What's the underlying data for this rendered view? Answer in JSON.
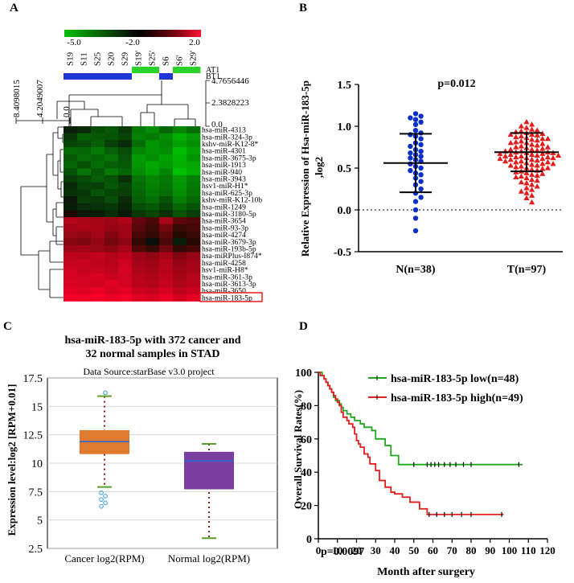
{
  "panels": {
    "A": {
      "letter": "A"
    },
    "B": {
      "letter": "B"
    },
    "C": {
      "letter": "C"
    },
    "D": {
      "letter": "D"
    }
  },
  "chart_data": [
    {
      "panel": "A",
      "type": "heatmap",
      "color_scale": {
        "ticks": [
          "-5.0",
          "-2.0",
          "2.0"
        ],
        "low_color": "#00c000",
        "mid_color": "#000000",
        "high_color": "#e8002a"
      },
      "samples": [
        "S19",
        "S11",
        "S25",
        "S20",
        "S29",
        "S19'",
        "S25'",
        "S6",
        "S6'",
        "S29'"
      ],
      "tracks": [
        {
          "name": "AT1",
          "values": [
            0,
            0,
            0,
            0,
            0,
            1,
            1,
            0,
            1,
            1
          ],
          "color": "#2ad22a"
        },
        {
          "name": "BT1",
          "values": [
            1,
            1,
            1,
            1,
            1,
            0,
            0,
            1,
            0,
            0
          ],
          "color": "#1f35d6"
        }
      ],
      "col_dendrogram_ticks": [
        "4.7656446",
        "2.3828223",
        "0.0"
      ],
      "row_dendrogram_ticks": [
        "8.4098015",
        "4.2049007",
        "0.0"
      ],
      "genes": [
        "hsa-miR-4313",
        "hsa-miR-324-3p",
        "kshv-miR-K12-8*",
        "hsa-miR-4301",
        "hsa-miR-3675-3p",
        "hsa-miR-1913",
        "hsa-miR-940",
        "hsa-miR-3943",
        "hsv1-miR-H1*",
        "hsa-miR-625-3p",
        "kshv-miR-K12-10b",
        "hsa-miR-1249",
        "hsa-miR-3180-5p",
        "hsa-miR-3654",
        "hsa-miR-93-3p",
        "hsa-miR-4274",
        "hsa-miR-3679-3p",
        "hsa-miR-193b-5p",
        "hsa-miRPlus-I874*",
        "hsa-miR-4258",
        "hsv1-miR-H8*",
        "hsa-miR-361-3p",
        "hsa-miR-3613-3p",
        "hsa-miR-3650",
        "hsa-miR-183-5p"
      ],
      "highlighted_gene": "hsa-miR-183-5p",
      "values": [
        [
          -2.2,
          -2.4,
          -2.9,
          -3.1,
          -2.6,
          -3.6,
          -3.9,
          -3.3,
          -3.8,
          -3.4
        ],
        [
          -2.6,
          -3.2,
          -3.1,
          -3.0,
          -2.8,
          -3.7,
          -3.6,
          -3.9,
          -4.4,
          -4.1
        ],
        [
          -2.8,
          -2.9,
          -3.2,
          -2.7,
          -2.4,
          -3.4,
          -4.0,
          -3.8,
          -4.2,
          -3.9
        ],
        [
          -3.4,
          -3.3,
          -3.6,
          -3.2,
          -2.9,
          -3.8,
          -4.0,
          -3.9,
          -4.6,
          -4.2
        ],
        [
          -3.1,
          -3.4,
          -3.3,
          -3.5,
          -3.0,
          -4.1,
          -3.9,
          -4.2,
          -4.5,
          -4.0
        ],
        [
          -3.3,
          -3.0,
          -3.4,
          -3.2,
          -3.1,
          -4.0,
          -4.3,
          -4.1,
          -4.4,
          -4.3
        ],
        [
          -3.0,
          -3.5,
          -3.1,
          -3.6,
          -3.3,
          -3.9,
          -4.2,
          -3.8,
          -4.7,
          -4.4
        ],
        [
          -2.7,
          -2.9,
          -3.2,
          -3.0,
          -2.5,
          -3.5,
          -3.8,
          -3.6,
          -4.1,
          -3.7
        ],
        [
          -2.4,
          -2.8,
          -2.7,
          -3.1,
          -2.8,
          -3.4,
          -3.7,
          -3.5,
          -4.0,
          -3.6
        ],
        [
          -2.5,
          -2.6,
          -3.0,
          -2.8,
          -2.7,
          -3.3,
          -3.6,
          -3.4,
          -3.9,
          -3.5
        ],
        [
          -2.1,
          -2.7,
          -2.6,
          -2.9,
          -2.4,
          -3.2,
          -3.4,
          -3.0,
          -3.7,
          -3.3
        ],
        [
          -2.2,
          -2.4,
          -2.5,
          -2.6,
          -2.3,
          -2.9,
          -3.1,
          -2.8,
          -3.3,
          -3.0
        ],
        [
          -1.9,
          -2.1,
          -2.2,
          -2.4,
          -2.1,
          -2.6,
          -2.8,
          -2.5,
          -3.0,
          -2.7
        ],
        [
          0.6,
          0.4,
          0.3,
          0.2,
          0.5,
          -0.8,
          -1.2,
          0.4,
          -0.9,
          -1.1
        ],
        [
          0.3,
          0.5,
          0.4,
          0.1,
          0.2,
          -1.0,
          -1.4,
          -0.5,
          -1.5,
          -1.3
        ],
        [
          0.1,
          0.0,
          0.3,
          -0.3,
          0.2,
          -1.3,
          -1.6,
          -0.9,
          -1.8,
          -1.5
        ],
        [
          -0.2,
          -0.4,
          0.0,
          -0.5,
          -0.1,
          -1.6,
          -2.0,
          -1.2,
          -2.2,
          -1.8
        ],
        [
          0.2,
          0.3,
          0.1,
          -0.1,
          0.4,
          -1.1,
          -1.5,
          -0.6,
          -1.6,
          -1.3
        ],
        [
          0.8,
          0.7,
          0.9,
          0.6,
          0.8,
          0.2,
          0.0,
          0.4,
          -0.3,
          0.1
        ],
        [
          0.9,
          1.0,
          0.8,
          0.7,
          1.1,
          0.3,
          0.2,
          0.6,
          0.0,
          0.3
        ],
        [
          1.1,
          0.9,
          1.0,
          0.8,
          1.2,
          0.5,
          0.3,
          0.7,
          0.2,
          0.4
        ],
        [
          1.2,
          1.1,
          1.3,
          1.0,
          1.1,
          0.6,
          0.5,
          0.8,
          0.4,
          0.6
        ],
        [
          1.3,
          1.2,
          1.1,
          1.4,
          1.2,
          0.7,
          0.6,
          0.9,
          0.5,
          0.7
        ],
        [
          1.5,
          1.4,
          1.6,
          1.3,
          1.5,
          1.0,
          0.9,
          1.2,
          0.8,
          1.0
        ],
        [
          1.8,
          1.7,
          1.9,
          1.6,
          1.8,
          1.4,
          1.3,
          1.6,
          1.2,
          1.5
        ]
      ]
    },
    {
      "panel": "B",
      "type": "scatter",
      "ylabel": "Relative Expression of Hsa-miR-183-5p ,log2",
      "ylim": [
        -0.5,
        1.5
      ],
      "yticks": [
        "-0.5",
        "0.0",
        "0.5",
        "1.0",
        "1.5"
      ],
      "annotation": "p=0.012",
      "groups": [
        {
          "label": "N(n=38)",
          "color": "#0b2fc8",
          "marker": "circle",
          "mean": 0.56,
          "sd_upper": 0.91,
          "sd_lower": 0.21,
          "values": [
            1.15,
            1.12,
            1.1,
            1.08,
            1.05,
            1.02,
            0.95,
            0.92,
            0.9,
            0.88,
            0.85,
            0.8,
            0.78,
            0.76,
            0.72,
            0.7,
            0.68,
            0.66,
            0.64,
            0.62,
            0.6,
            0.58,
            0.55,
            0.52,
            0.5,
            0.47,
            0.44,
            0.42,
            0.38,
            0.34,
            0.3,
            0.25,
            0.2,
            0.15,
            0.1,
            0.0,
            -0.1,
            -0.25
          ]
        },
        {
          "label": "T(n=97)",
          "color": "#e41c1c",
          "marker": "triangle",
          "mean": 0.69,
          "sd_upper": 0.92,
          "sd_lower": 0.46,
          "values": [
            1.05,
            1.02,
            1.0,
            0.98,
            0.96,
            0.95,
            0.94,
            0.93,
            0.92,
            0.91,
            0.9,
            0.9,
            0.89,
            0.88,
            0.87,
            0.86,
            0.85,
            0.85,
            0.84,
            0.83,
            0.82,
            0.81,
            0.8,
            0.8,
            0.79,
            0.78,
            0.77,
            0.76,
            0.75,
            0.75,
            0.74,
            0.73,
            0.72,
            0.72,
            0.71,
            0.7,
            0.7,
            0.69,
            0.69,
            0.68,
            0.68,
            0.67,
            0.67,
            0.66,
            0.66,
            0.65,
            0.65,
            0.64,
            0.64,
            0.63,
            0.63,
            0.62,
            0.62,
            0.61,
            0.61,
            0.6,
            0.6,
            0.59,
            0.58,
            0.58,
            0.57,
            0.57,
            0.56,
            0.55,
            0.55,
            0.54,
            0.53,
            0.53,
            0.52,
            0.51,
            0.5,
            0.5,
            0.49,
            0.48,
            0.47,
            0.46,
            0.45,
            0.44,
            0.43,
            0.42,
            0.41,
            0.4,
            0.39,
            0.38,
            0.36,
            0.35,
            0.33,
            0.32,
            0.3,
            0.28,
            0.26,
            0.24,
            0.22,
            0.2,
            0.17,
            0.14,
            0.09
          ]
        }
      ]
    },
    {
      "panel": "C",
      "type": "box",
      "title": "hsa-miR-183-5p with 372 cancer and 32 normal samples in STAD",
      "title_lines": [
        "hsa-miR-183-5p with 372 cancer and",
        "32 normal samples in STAD"
      ],
      "subtitle": "Data Source:starBase v3.0 project",
      "ylabel": "Expression level:log2 [RPM+0.01]",
      "ylim": [
        2.5,
        17.5
      ],
      "yticks": [
        "2.5",
        "5",
        "7.5",
        "10",
        "12.5",
        "15",
        "17.5"
      ],
      "boxes": [
        {
          "label": "Cancer log2(RPM)",
          "color": "#e07a2e",
          "q1": 10.8,
          "median": 11.9,
          "q3": 12.9,
          "whisker_low": 7.9,
          "whisker_high": 15.9,
          "outliers": [
            7.4,
            7.1,
            6.8,
            6.5,
            6.2,
            16.2
          ]
        },
        {
          "label": "Normal log2(RPM)",
          "color": "#7a3fa0",
          "q1": 7.7,
          "median": 10.2,
          "q3": 11.0,
          "whisker_low": 3.4,
          "whisker_high": 11.7,
          "outliers": []
        }
      ]
    },
    {
      "panel": "D",
      "type": "line",
      "subtype": "kaplan-meier",
      "xlabel": "Month after surgery",
      "ylabel": "Overall Survival Rates(%)",
      "xlim": [
        0,
        120
      ],
      "ylim": [
        0,
        100
      ],
      "xticks": [
        "0",
        "10",
        "20",
        "30",
        "40",
        "50",
        "60",
        "70",
        "80",
        "90",
        "100",
        "110",
        "120"
      ],
      "yticks": [
        "0",
        "20",
        "40",
        "60",
        "80",
        "100"
      ],
      "annotation": "p=0.0097",
      "series": [
        {
          "name": "hsa-miR-183-5p low(n=48)",
          "color": "#1fa81f",
          "x": [
            0,
            2,
            3,
            4,
            5,
            6,
            7,
            8,
            9,
            11,
            12,
            13,
            15,
            17,
            19,
            22,
            24,
            28,
            30,
            35,
            38,
            42,
            107
          ],
          "y": [
            100,
            98,
            96,
            94,
            92,
            90,
            88,
            85,
            83,
            81,
            79,
            77,
            75,
            73,
            71,
            69,
            67,
            65,
            60,
            56,
            50,
            44.6,
            44.6
          ],
          "censor_x": [
            50,
            57,
            59,
            61,
            63,
            66,
            69,
            72,
            76,
            80,
            105
          ]
        },
        {
          "name": "hsa-miR-183-5p high(n=49)",
          "color": "#e41c1c",
          "x": [
            0,
            1,
            3,
            4,
            5,
            6,
            7,
            8,
            9,
            10,
            11,
            12,
            13,
            15,
            16,
            18,
            19,
            20,
            21,
            22,
            24,
            26,
            27,
            30,
            32,
            35,
            38,
            40,
            44,
            48,
            53,
            57,
            97
          ],
          "y": [
            100,
            98,
            96,
            94,
            92,
            90,
            88,
            86,
            84,
            82,
            80,
            76,
            73,
            71,
            69,
            67,
            63,
            59,
            57,
            55,
            51,
            49,
            45,
            41,
            35,
            31,
            28,
            27,
            25,
            22,
            18,
            14.6,
            14.6
          ],
          "censor_x": [
            58,
            62,
            66,
            70,
            75,
            80,
            96
          ]
        }
      ]
    }
  ]
}
